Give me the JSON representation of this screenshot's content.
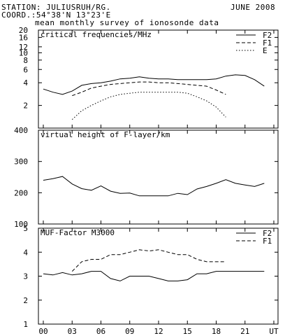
{
  "header": {
    "station": "STATION: JULIUSRUH/RG.",
    "date": "JUNE 2008",
    "coord": "COORD.:54°38'N 13°23'E",
    "subtitle": "mean monthly survey of ionosonde data"
  },
  "chart_data": [
    {
      "type": "line",
      "title": "critical frequencies/MHz",
      "scale": "log",
      "ylim": [
        1,
        20
      ],
      "yticks": [
        2,
        4,
        6,
        8,
        10,
        12,
        16,
        20
      ],
      "legend": "top-right",
      "x": [
        0,
        1,
        2,
        3,
        4,
        5,
        6,
        7,
        8,
        9,
        10,
        11,
        12,
        13,
        14,
        15,
        16,
        17,
        18,
        19,
        20,
        21,
        22,
        23
      ],
      "series": [
        {
          "name": "F2",
          "dash": "solid",
          "values": [
            3.3,
            3.0,
            2.8,
            3.1,
            3.7,
            3.9,
            4.0,
            4.2,
            4.5,
            4.6,
            4.8,
            4.6,
            4.5,
            4.5,
            4.4,
            4.4,
            4.4,
            4.4,
            4.5,
            4.9,
            5.1,
            5.0,
            4.4,
            3.6
          ]
        },
        {
          "name": "F1",
          "dash": "dashed",
          "values": [
            null,
            null,
            null,
            2.7,
            3.0,
            3.4,
            3.6,
            3.8,
            3.9,
            4.0,
            4.1,
            4.1,
            4.0,
            4.0,
            3.9,
            3.8,
            3.7,
            3.6,
            3.2,
            2.8,
            null,
            null,
            null,
            null
          ]
        },
        {
          "name": "E",
          "dash": "dotted",
          "values": [
            null,
            null,
            null,
            1.3,
            1.7,
            2.0,
            2.3,
            2.6,
            2.8,
            2.9,
            3.0,
            3.0,
            3.0,
            3.0,
            3.0,
            2.9,
            2.6,
            2.3,
            1.9,
            1.4,
            null,
            null,
            null,
            null
          ]
        }
      ]
    },
    {
      "type": "line",
      "title": "virtual height of F-layer/km",
      "ylim": [
        100,
        400
      ],
      "yticks": [
        100,
        200,
        300,
        400
      ],
      "x": [
        0,
        1,
        2,
        3,
        4,
        5,
        6,
        7,
        8,
        9,
        10,
        11,
        12,
        13,
        14,
        15,
        16,
        17,
        18,
        19,
        20,
        21,
        22,
        23
      ],
      "series": [
        {
          "dash": "solid",
          "values": [
            240,
            245,
            252,
            228,
            213,
            208,
            222,
            205,
            198,
            199,
            190,
            190,
            190,
            190,
            198,
            194,
            212,
            220,
            230,
            242,
            230,
            225,
            220,
            230
          ]
        }
      ]
    },
    {
      "type": "line",
      "title": "MUF-Factor M3000",
      "ylim": [
        1,
        5
      ],
      "yticks": [
        1,
        2,
        3,
        4,
        5
      ],
      "legend": "top-right",
      "x": [
        0,
        1,
        2,
        3,
        4,
        5,
        6,
        7,
        8,
        9,
        10,
        11,
        12,
        13,
        14,
        15,
        16,
        17,
        18,
        19,
        20,
        21,
        22,
        23
      ],
      "series": [
        {
          "name": "F2",
          "dash": "solid",
          "values": [
            3.1,
            3.05,
            3.15,
            3.05,
            3.1,
            3.2,
            3.2,
            2.9,
            2.8,
            3.0,
            3.0,
            3.0,
            2.9,
            2.8,
            2.8,
            2.85,
            3.1,
            3.1,
            3.2,
            3.2,
            3.2,
            3.2,
            3.2,
            3.2
          ]
        },
        {
          "name": "F1",
          "dash": "dashed",
          "values": [
            null,
            null,
            null,
            3.2,
            3.6,
            3.7,
            3.7,
            3.9,
            3.9,
            4.0,
            4.1,
            4.05,
            4.1,
            4.0,
            3.9,
            3.9,
            3.7,
            3.6,
            3.6,
            3.6,
            null,
            null,
            null,
            null
          ]
        }
      ]
    }
  ],
  "xaxis": {
    "ticks": [
      "00",
      "03",
      "06",
      "09",
      "12",
      "15",
      "18",
      "21",
      "UT"
    ]
  }
}
